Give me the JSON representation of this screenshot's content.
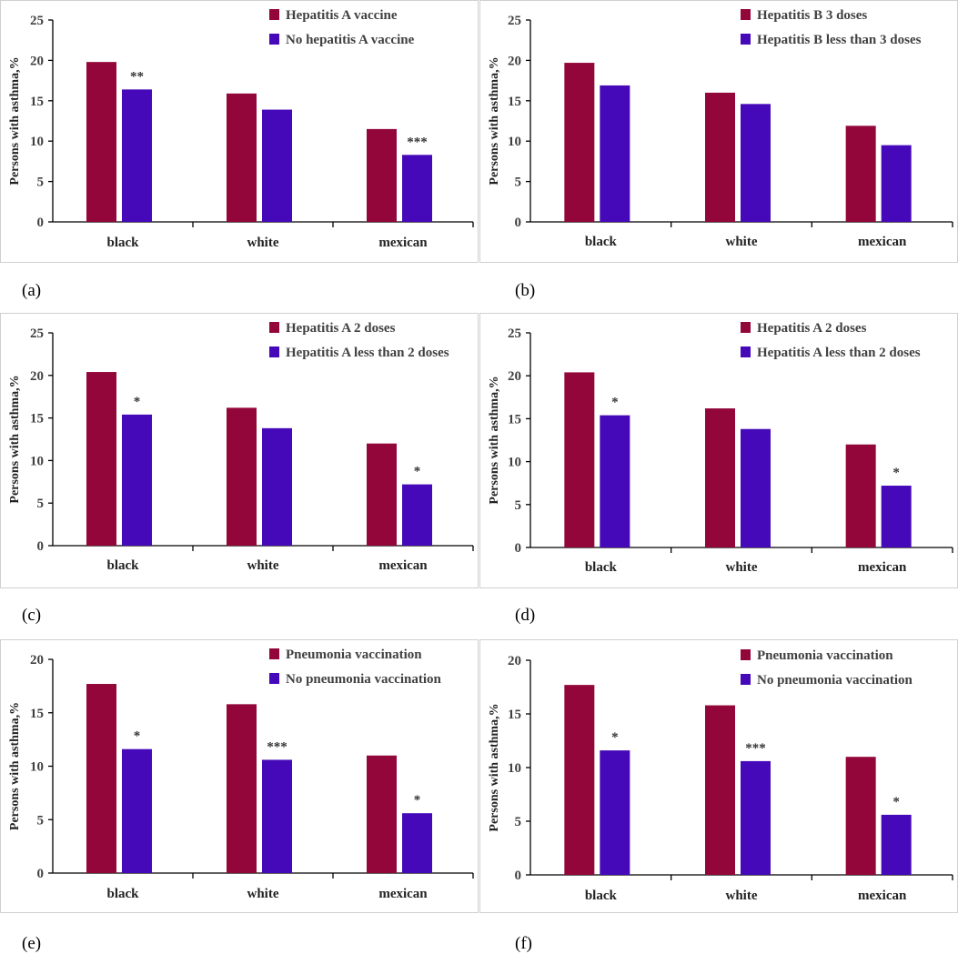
{
  "colors": {
    "series1": "#93063a",
    "series2": "#4509b9",
    "axis": "#000000",
    "frame": "#d0d0d0"
  },
  "chart_data": [
    {
      "panel_label": "(a)",
      "type": "bar",
      "categories": [
        "black",
        "white",
        "mexican"
      ],
      "series": [
        {
          "name": "Hepatitis A vaccine",
          "values": [
            19.8,
            15.9,
            11.5
          ]
        },
        {
          "name": "No hepatitis A vaccine",
          "values": [
            16.4,
            13.9,
            8.3
          ]
        }
      ],
      "annotations": [
        "**",
        "",
        "***"
      ],
      "ylabel": "Persons with asthma,%",
      "ylim": [
        0,
        25
      ],
      "yticks": [
        0,
        5,
        10,
        15,
        20,
        25
      ]
    },
    {
      "panel_label": "(b)",
      "type": "bar",
      "categories": [
        "black",
        "white",
        "mexican"
      ],
      "series": [
        {
          "name": "Hepatitis B 3 doses",
          "values": [
            19.7,
            16.0,
            11.9
          ]
        },
        {
          "name": "Hepatitis B less than 3 doses",
          "values": [
            16.9,
            14.6,
            9.5
          ]
        }
      ],
      "annotations": [
        "",
        "",
        ""
      ],
      "ylabel": "Persons with asthma,%",
      "ylim": [
        0,
        25
      ],
      "yticks": [
        0,
        5,
        10,
        15,
        20,
        25
      ]
    },
    {
      "panel_label": "(c)",
      "type": "bar",
      "categories": [
        "black",
        "white",
        "mexican"
      ],
      "series": [
        {
          "name": "Hepatitis A 2 doses",
          "values": [
            20.4,
            16.2,
            12.0
          ]
        },
        {
          "name": "Hepatitis A less than 2 doses",
          "values": [
            15.4,
            13.8,
            7.2
          ]
        }
      ],
      "annotations": [
        "*",
        "",
        "*"
      ],
      "ylabel": "Persons with asthma,%",
      "ylim": [
        0,
        25
      ],
      "yticks": [
        0,
        5,
        10,
        15,
        20,
        25
      ]
    },
    {
      "panel_label": "(d)",
      "type": "bar",
      "categories": [
        "black",
        "white",
        "mexican"
      ],
      "series": [
        {
          "name": "Hepatitis A 2 doses",
          "values": [
            20.4,
            16.2,
            12.0
          ]
        },
        {
          "name": "Hepatitis A less than 2 doses",
          "values": [
            15.4,
            13.8,
            7.2
          ]
        }
      ],
      "annotations": [
        "*",
        "",
        "*"
      ],
      "ylabel": "Persons with asthma,%",
      "ylim": [
        0,
        25
      ],
      "yticks": [
        0,
        5,
        10,
        15,
        20,
        25
      ]
    },
    {
      "panel_label": "(e)",
      "type": "bar",
      "categories": [
        "black",
        "white",
        "mexican"
      ],
      "series": [
        {
          "name": "Pneumonia vaccination",
          "values": [
            17.7,
            15.8,
            11.0
          ]
        },
        {
          "name": "No pneumonia vaccination",
          "values": [
            11.6,
            10.6,
            5.6
          ]
        }
      ],
      "annotations": [
        "*",
        "***",
        "*"
      ],
      "ylabel": "Persons with asthma,%",
      "ylim": [
        0,
        20
      ],
      "yticks": [
        0,
        5,
        10,
        15,
        20
      ]
    },
    {
      "panel_label": "(f)",
      "type": "bar",
      "categories": [
        "black",
        "white",
        "mexican"
      ],
      "series": [
        {
          "name": "Pneumonia vaccination",
          "values": [
            17.7,
            15.8,
            11.0
          ]
        },
        {
          "name": "No pneumonia vaccination",
          "values": [
            11.6,
            10.6,
            5.6
          ]
        }
      ],
      "annotations": [
        "*",
        "***",
        "*"
      ],
      "ylabel": "Persons with asthma,%",
      "ylim": [
        0,
        20
      ],
      "yticks": [
        0,
        5,
        10,
        15,
        20
      ]
    }
  ]
}
